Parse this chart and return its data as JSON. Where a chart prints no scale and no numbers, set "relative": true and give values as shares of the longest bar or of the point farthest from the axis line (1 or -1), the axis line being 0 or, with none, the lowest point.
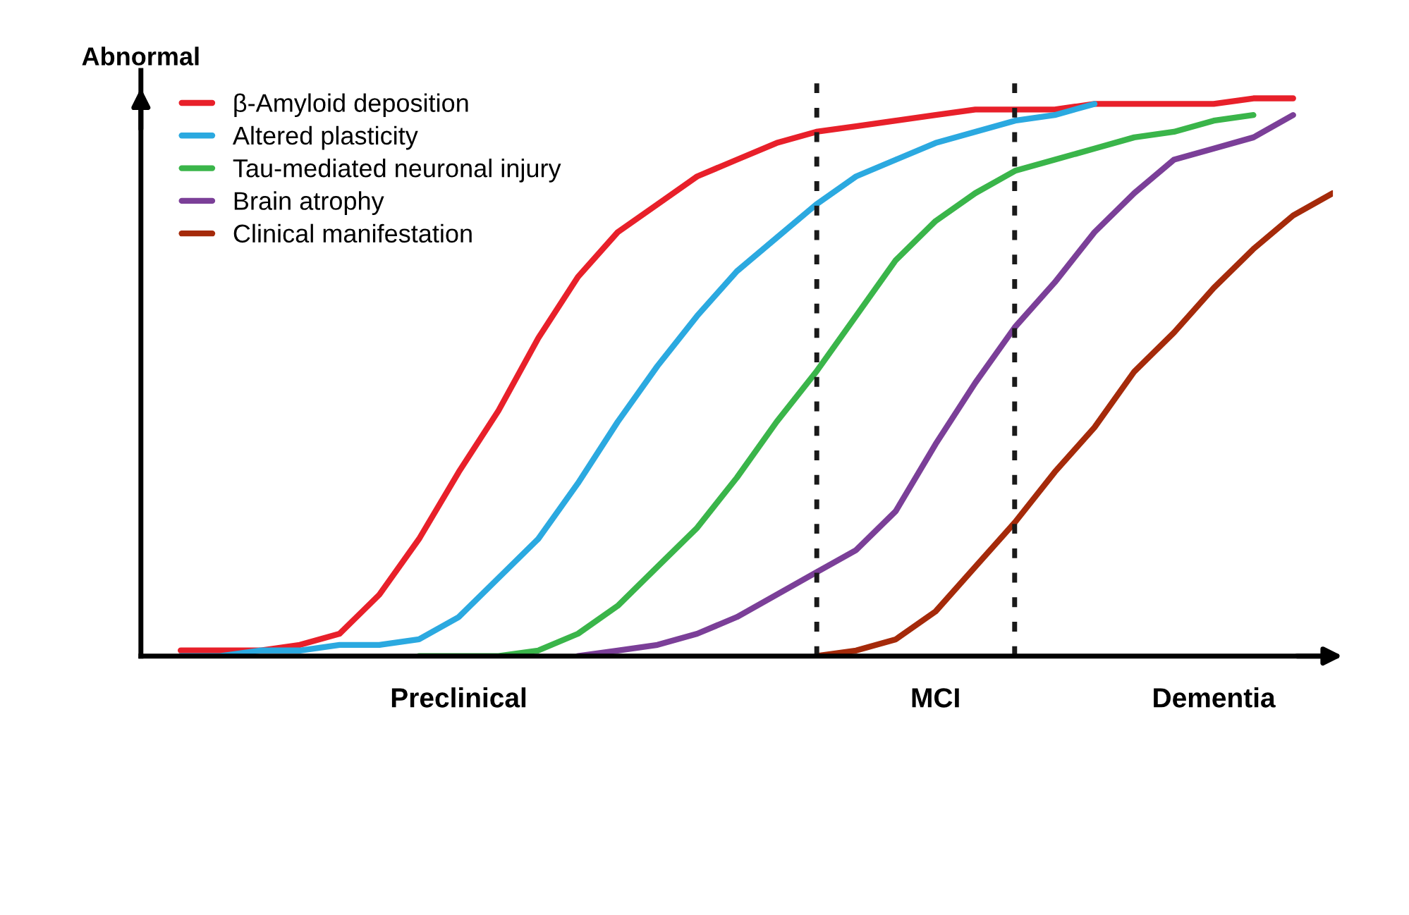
{
  "chart_data": {
    "type": "line",
    "ylabel": "Abnormal",
    "relative": true,
    "tick_labels": "x",
    "legend": "top left",
    "categories": [
      null,
      null,
      null,
      null,
      null,
      null,
      null,
      null,
      "Preclinical",
      null,
      null,
      null,
      null,
      null,
      null,
      null,
      null,
      null,
      null,
      null,
      "MCI",
      null,
      null,
      null,
      null,
      null,
      null,
      "Dementia",
      null,
      null,
      null
    ],
    "series": [
      {
        "name": "β-Amyloid deposition",
        "color": "#e8202a",
        "values": [
          null,
          0.01,
          0.01,
          0.01,
          0.02,
          0.04,
          0.11,
          0.21,
          0.33,
          0.44,
          0.57,
          0.68,
          0.76,
          0.81,
          0.86,
          0.89,
          0.92,
          0.94,
          0.95,
          0.96,
          0.97,
          0.98,
          0.98,
          0.98,
          0.99,
          0.99,
          0.99,
          0.99,
          1.0,
          1.0,
          null
        ]
      },
      {
        "name": "Altered plasticity",
        "color": "#2ba9e0",
        "values": [
          null,
          0.0,
          0.0,
          0.01,
          0.01,
          0.02,
          0.02,
          0.03,
          0.07,
          0.14,
          0.21,
          0.31,
          0.42,
          0.52,
          0.61,
          0.69,
          0.75,
          0.81,
          0.86,
          0.89,
          0.92,
          0.94,
          0.96,
          0.97,
          0.99,
          null,
          null,
          null,
          null,
          null,
          null
        ]
      },
      {
        "name": "Tau-mediated neuronal injury",
        "color": "#3ab54a",
        "values": [
          null,
          null,
          null,
          null,
          null,
          null,
          null,
          0.0,
          0.0,
          0.0,
          0.01,
          0.04,
          0.09,
          0.16,
          0.23,
          0.32,
          0.42,
          0.51,
          0.61,
          0.71,
          0.78,
          0.83,
          0.87,
          0.89,
          0.91,
          0.93,
          0.94,
          0.96,
          0.97,
          null,
          null
        ]
      },
      {
        "name": "Brain atrophy",
        "color": "#7b3f98",
        "values": [
          null,
          null,
          null,
          null,
          null,
          null,
          null,
          null,
          null,
          null,
          null,
          0.0,
          0.01,
          0.02,
          0.04,
          0.07,
          0.11,
          0.15,
          0.19,
          0.26,
          0.38,
          0.49,
          0.59,
          0.67,
          0.76,
          0.83,
          0.89,
          0.91,
          0.93,
          0.97,
          null
        ]
      },
      {
        "name": "Clinical manifestation",
        "color": "#a52a0a",
        "values": [
          null,
          null,
          null,
          null,
          null,
          null,
          null,
          null,
          null,
          null,
          null,
          null,
          null,
          null,
          null,
          null,
          null,
          0.0,
          0.01,
          0.03,
          0.08,
          0.16,
          0.24,
          0.33,
          0.41,
          0.51,
          0.58,
          0.66,
          0.73,
          0.79,
          0.83
        ]
      }
    ]
  }
}
